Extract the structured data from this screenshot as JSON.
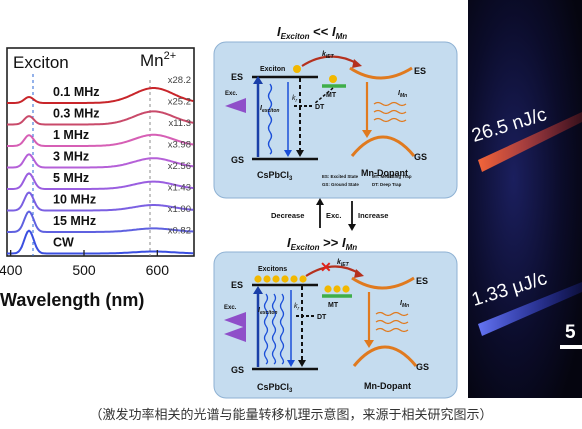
{
  "panel_a": {
    "exciton_label": "Exciton",
    "mn_label": "Mn",
    "mn_sup": "2+",
    "x_ticks": [
      "400",
      "500",
      "600"
    ],
    "x_axis_label": "Wavelength (nm)",
    "spectra": [
      {
        "label": "0.1 MHz",
        "scale": "x28.2",
        "color": "#c8252a"
      },
      {
        "label": "0.3 MHz",
        "scale": "x25.2",
        "color": "#c94a6a"
      },
      {
        "label": "1 MHz",
        "scale": "x11.3",
        "color": "#d65fb5"
      },
      {
        "label": "3 MHz",
        "scale": "x3.98",
        "color": "#b560d8"
      },
      {
        "label": "5 MHz",
        "scale": "x2.56",
        "color": "#9a5ee0"
      },
      {
        "label": "10 MHz",
        "scale": "x1.43",
        "color": "#7b60e2"
      },
      {
        "label": "15 MHz",
        "scale": "x1.00",
        "color": "#5f61e0"
      },
      {
        "label": "CW",
        "scale": "x0.82",
        "color": "#3b4fe0"
      }
    ]
  },
  "panel_b": {
    "top": {
      "title_I": "I",
      "title_sub1": "Exciton",
      "title_rel": " << ",
      "title_I2": "I",
      "title_sub2": "Mn",
      "es_left": "ES",
      "gs_left": "GS",
      "exciton": "Exciton",
      "k_iet": "k",
      "k_iet_sub": "IET",
      "mt": "MT",
      "dt": "DT",
      "exc": "Exc.",
      "i_exciton": "I",
      "i_exciton_sub": "exciton",
      "kr": "k",
      "kr_sub": "r",
      "i_mn": "I",
      "i_mn_sub": "Mn",
      "es_right": "ES",
      "gs_right": "GS",
      "mn_dopant": "Mn-Dopant",
      "host": "CsPbCl",
      "host_sub": "3",
      "legend_1": "ES: Excited State",
      "legend_2": "MT: Mediating Trap",
      "legend_3": "GS: Ground State",
      "legend_4": "DT: Deep Trap"
    },
    "middle": {
      "decrease": "Decrease",
      "exc": "Exc.",
      "increase": "Increase"
    },
    "bottom": {
      "title_I": "I",
      "title_sub1": "Exciton",
      "title_rel": " >> ",
      "title_I2": "I",
      "title_sub2": "Mn",
      "es_left": "ES",
      "gs_left": "GS",
      "excitons": "Excitons",
      "k_iet": "k",
      "k_iet_sub": "IET",
      "mt": "MT",
      "dt": "DT",
      "exc": "Exc.",
      "i_exciton": "I",
      "i_exciton_sub": "exciton",
      "kr": "k",
      "kr_sub": "r",
      "i_mn": "I",
      "i_mn_sub": "Mn",
      "es_right": "ES",
      "gs_right": "GS",
      "mn_dopant": "Mn-Dopant",
      "host": "CsPbCl",
      "host_sub": "3"
    }
  },
  "panel_c": {
    "label_top": "26.5 nJ/c",
    "label_bottom": "1.33 μJ/c",
    "scale_label": "5"
  },
  "caption": "（激发功率相关的光谱与能量转移机理示意图，来源于相关研究图示）",
  "colors": {
    "diagram_bg": "#c5dcef",
    "orange": "#e07a1f",
    "blue": "#1a4ed8",
    "exciton_dot": "#f2b800",
    "mt_green": "#3fae49"
  }
}
